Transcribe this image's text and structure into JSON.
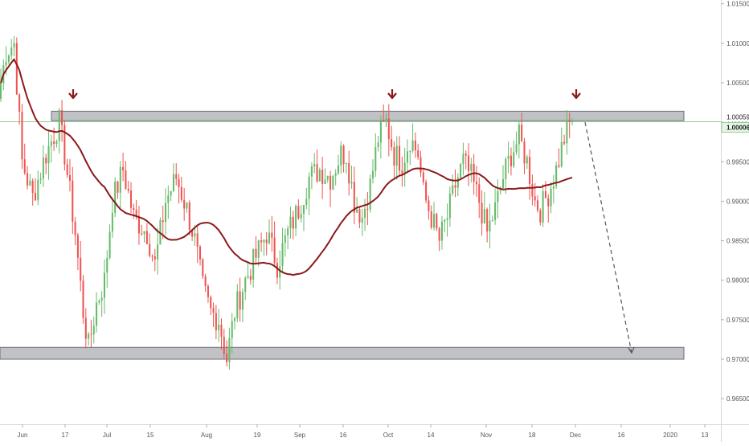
{
  "chart_data": {
    "type": "candlestick",
    "title": "",
    "xlabel": "",
    "ylabel": "",
    "ylim": [
      0.9614,
      1.0151
    ],
    "y_ticks": [
      "1.01500",
      "1.01000",
      "1.00500",
      "1.00000",
      "0.99500",
      "0.99000",
      "0.98500",
      "0.98000",
      "0.97500",
      "0.97000",
      "0.96500"
    ],
    "x_tick_labels": [
      "Jun",
      "17",
      "Jul",
      "15",
      "Aug",
      "19",
      "Sep",
      "16",
      "Oct",
      "14",
      "Nov",
      "18",
      "Dec",
      "16",
      "2020",
      "13"
    ],
    "price_labels": {
      "resistance_level": "1.00059",
      "last_price": "1.00006"
    },
    "zones": [
      {
        "name": "resistance-zone",
        "y_low": 1.0002,
        "y_high": 1.0014
      },
      {
        "name": "support-zone",
        "y_low": 0.97,
        "y_high": 0.9715
      }
    ],
    "moving_average_color": "#8b1a1a",
    "colors": {
      "up_candle": "#66bb6a",
      "down_candle": "#ef5350",
      "zone_fill": "#c0c2c6",
      "zone_border": "#6b6e75",
      "marker_arrow": "#8b1a1a",
      "projection_line": "#555555",
      "price_line": "#8fd18f"
    },
    "markers": [
      "down-arrow",
      "down-arrow",
      "down-arrow"
    ],
    "projection": {
      "from": 1.0,
      "to": 0.9708,
      "style": "dashed"
    }
  }
}
